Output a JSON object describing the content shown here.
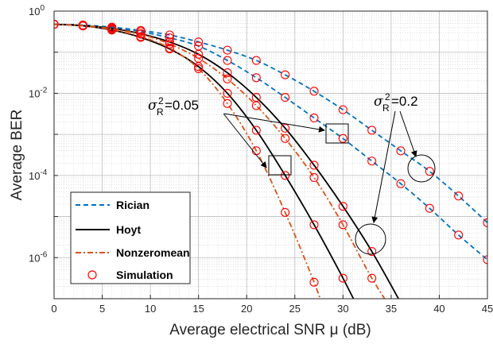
{
  "chart_data": {
    "type": "line",
    "xlabel": "Average electrical SNR μ (dB)",
    "ylabel": "Average BER",
    "xlim": [
      0,
      45
    ],
    "ylim_log10": [
      -7,
      0
    ],
    "yscale": "log",
    "grid": true,
    "x_ticks": [
      "0",
      "5",
      "10",
      "15",
      "20",
      "25",
      "30",
      "35",
      "40",
      "45"
    ],
    "y_ticks": [
      {
        "base": "10",
        "exp": "-6",
        "log": -6
      },
      {
        "base": "10",
        "exp": "-4",
        "log": -4
      },
      {
        "base": "10",
        "exp": "-2",
        "log": -2
      },
      {
        "base": "10",
        "exp": "0",
        "log": 0
      }
    ],
    "legend": {
      "position": "bottom-left",
      "entries": [
        "Rician",
        "Hoyt",
        "Nonzeromean",
        "Simulation"
      ]
    },
    "colors": {
      "rician": "#0072BD",
      "hoyt": "#000000",
      "nonzeromean": "#D95319",
      "simulation": "#FF0000"
    },
    "annotations": {
      "left_sigma": "σ",
      "left_sub": "R",
      "left_sup": "2",
      "left_value": "=0.05",
      "right_sigma": "σ",
      "right_sub": "R",
      "right_sup": "2",
      "right_value": "=0.2"
    },
    "series": [
      {
        "name": "Rician",
        "group": "σR²=0.05",
        "style": "dashed",
        "x": [
          0,
          3,
          6,
          9,
          12,
          15,
          18,
          21,
          24,
          27,
          30,
          33,
          36,
          39,
          42,
          45
        ],
        "logy": [
          -0.32,
          -0.34,
          -0.4,
          -0.5,
          -0.65,
          -0.85,
          -1.2,
          -1.62,
          -2.1,
          -2.6,
          -3.1,
          -3.65,
          -4.2,
          -4.8,
          -5.45,
          -6.05
        ]
      },
      {
        "name": "Rician",
        "group": "σR²=0.2",
        "style": "dashed",
        "x": [
          0,
          3,
          6,
          9,
          12,
          15,
          18,
          21,
          24,
          27,
          30,
          33,
          36,
          39,
          42,
          45
        ],
        "logy": [
          -0.32,
          -0.34,
          -0.39,
          -0.47,
          -0.58,
          -0.75,
          -0.95,
          -1.2,
          -1.55,
          -1.95,
          -2.4,
          -2.9,
          -3.4,
          -3.9,
          -4.5,
          -5.15
        ]
      },
      {
        "name": "Hoyt",
        "group": "σR²=0.05",
        "style": "solid",
        "x": [
          0,
          3,
          6,
          9,
          12,
          15,
          18,
          21,
          24,
          27,
          30,
          33
        ],
        "logy": [
          -0.32,
          -0.36,
          -0.46,
          -0.64,
          -0.92,
          -1.35,
          -2.0,
          -2.9,
          -4.0,
          -5.2,
          -6.5,
          -7.9
        ]
      },
      {
        "name": "Hoyt",
        "group": "σR²=0.2",
        "style": "solid",
        "x": [
          0,
          3,
          6,
          9,
          12,
          15,
          18,
          21,
          24,
          27,
          30,
          33,
          36,
          39
        ],
        "logy": [
          -0.32,
          -0.35,
          -0.42,
          -0.55,
          -0.75,
          -1.05,
          -1.5,
          -2.1,
          -2.85,
          -3.75,
          -4.75,
          -5.85,
          -7.1,
          -8.4
        ]
      },
      {
        "name": "Nonzeromean",
        "group": "σR²=0.05",
        "style": "dashdot",
        "x": [
          0,
          3,
          6,
          9,
          12,
          15,
          18,
          21,
          24,
          27,
          28.5
        ],
        "logy": [
          -0.32,
          -0.36,
          -0.45,
          -0.62,
          -0.9,
          -1.4,
          -2.25,
          -3.4,
          -4.9,
          -6.6,
          -7.6
        ]
      },
      {
        "name": "Nonzeromean",
        "group": "σR²=0.2",
        "style": "dashdot",
        "x": [
          0,
          3,
          6,
          9,
          12,
          15,
          18,
          21,
          24,
          27,
          30,
          33,
          36
        ],
        "logy": [
          -0.32,
          -0.35,
          -0.43,
          -0.56,
          -0.8,
          -1.15,
          -1.65,
          -2.3,
          -3.1,
          -4.05,
          -5.2,
          -6.5,
          -7.6
        ]
      }
    ],
    "simulation_points": {
      "x": [
        0,
        3,
        6,
        9,
        12,
        15,
        18,
        21,
        24,
        27,
        30,
        33,
        36,
        39,
        42,
        45
      ],
      "on_series": [
        0,
        1,
        2,
        3,
        4,
        5
      ]
    }
  }
}
